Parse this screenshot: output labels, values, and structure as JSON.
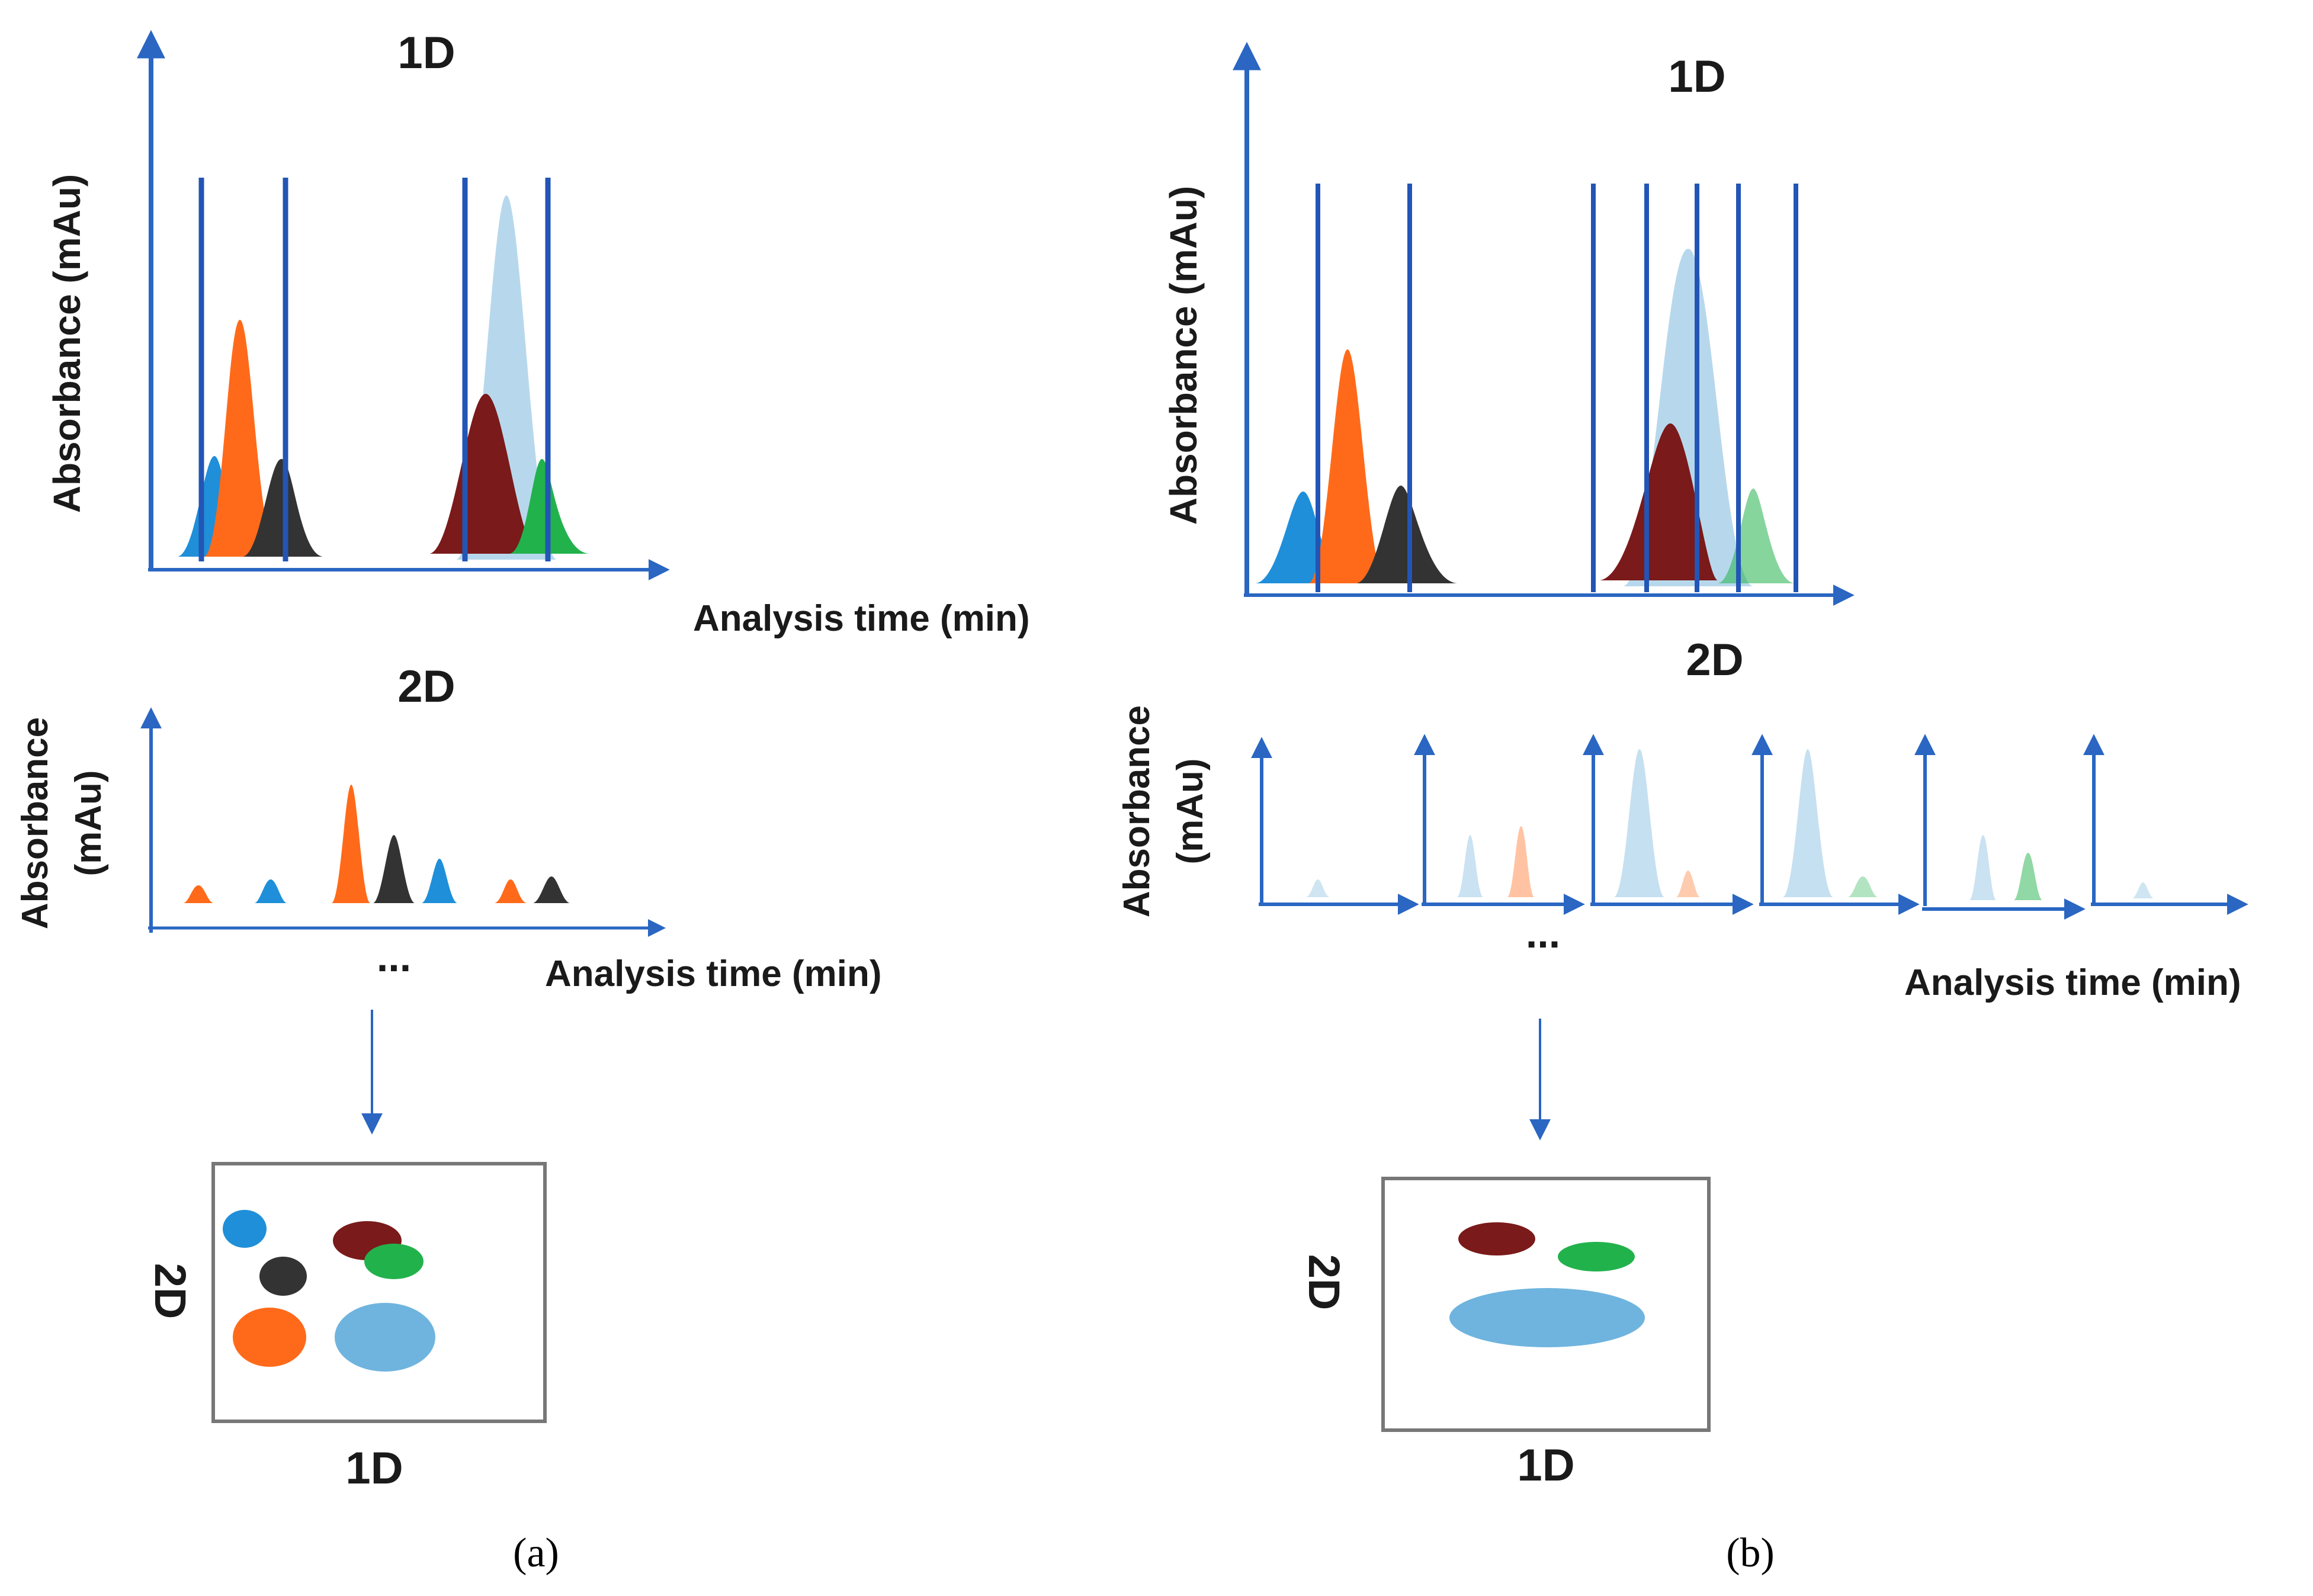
{
  "colors": {
    "axis": "#2a66c2",
    "cut": "#2255b5",
    "blue": "#1f8fd9",
    "orange": "#ff6a1a",
    "dark": "#333333",
    "lightblue": "#9fcbe6",
    "maroon": "#7a1a1a",
    "green": "#22b24c",
    "box": "#777777"
  },
  "labels": {
    "one_d": "1D",
    "two_d": "2D",
    "absorbance": "Absorbance (mAu)",
    "absorbance_line1": "Absorbance",
    "absorbance_line2": "(mAu)",
    "analysis_time": "Analysis time (min)",
    "ellipsis": "...",
    "two_d_axis": "2D",
    "one_d_axis": "1D"
  },
  "captions": {
    "a": "(a)",
    "b": "(b)"
  },
  "panel_a": {
    "first_dimension_peaks": [
      "blue",
      "orange",
      "dark",
      "maroon",
      "lightblue",
      "green"
    ],
    "second_dimension_peaks": [
      "orange",
      "blue",
      "orange",
      "dark",
      "blue",
      "orange",
      "dark"
    ],
    "map_spots": [
      "blue",
      "maroon",
      "green",
      "dark",
      "orange",
      "lightblue"
    ]
  },
  "panel_b": {
    "first_dimension_peaks": [
      "blue",
      "orange",
      "dark",
      "maroon",
      "lightblue",
      "green"
    ],
    "second_dimension_subplots": 6,
    "map_spots": [
      "maroon",
      "green",
      "lightblue"
    ]
  }
}
